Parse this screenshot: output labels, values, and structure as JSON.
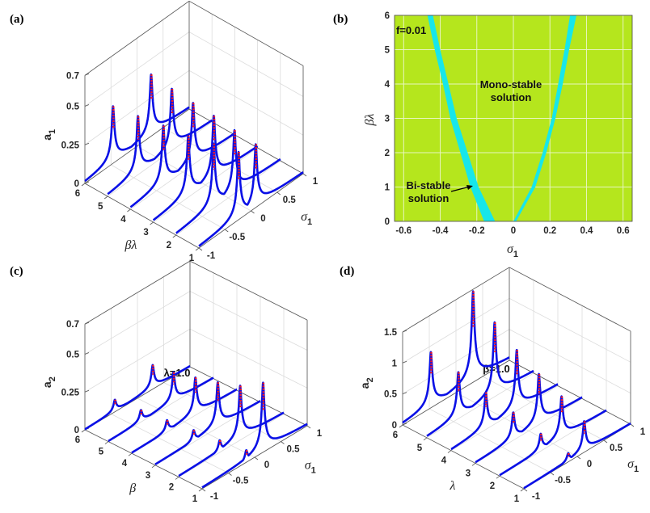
{
  "colors": {
    "curve_stable": "#0a10e6",
    "curve_unstable": "#ff1a1a",
    "map_bg": "#b5e61d",
    "map_band": "#17e6ea",
    "grid": "#dcdcdc",
    "axis": "#555555"
  },
  "chart_data": [
    {
      "type": "line3d",
      "panel_label": "(a)",
      "zlabel": {
        "main": "a",
        "sub": "1"
      },
      "ylabel": "βλ",
      "xlabel": {
        "main": "σ",
        "sub": "1"
      },
      "annotation": "",
      "zlim": [
        0,
        0.7
      ],
      "zticks": [
        0,
        0.25,
        0.5,
        0.7
      ],
      "zticklabels": [
        "0",
        "0.25",
        "0.5",
        "0.7"
      ],
      "yticks": [
        1,
        2,
        3,
        4,
        5,
        6
      ],
      "yticklabels": [
        "1",
        "2",
        "3",
        "4",
        "5",
        "6"
      ],
      "xticks": [
        -1,
        -0.5,
        0,
        0.5,
        1
      ],
      "xticklabels": [
        "-1",
        "-0.5",
        "0",
        "0.5",
        "1"
      ],
      "series": [
        {
          "param": 6,
          "peaks": [
            {
              "sigma": -0.46,
              "height": 0.37
            },
            {
              "sigma": 0.27,
              "height": 0.4
            }
          ]
        },
        {
          "param": 5,
          "peaks": [
            {
              "sigma": -0.42,
              "height": 0.38
            },
            {
              "sigma": 0.23,
              "height": 0.4
            }
          ]
        },
        {
          "param": 4,
          "peaks": [
            {
              "sigma": -0.37,
              "height": 0.39
            },
            {
              "sigma": 0.2,
              "height": 0.4
            }
          ]
        },
        {
          "param": 3,
          "peaks": [
            {
              "sigma": -0.33,
              "height": 0.4
            },
            {
              "sigma": 0.16,
              "height": 0.41
            }
          ]
        },
        {
          "param": 2,
          "peaks": [
            {
              "sigma": -0.28,
              "height": 0.42
            },
            {
              "sigma": 0.12,
              "height": 0.41
            }
          ]
        },
        {
          "param": 1,
          "peaks": [
            {
              "sigma": -0.24,
              "height": 0.44
            },
            {
              "sigma": 0.09,
              "height": 0.41
            }
          ]
        }
      ]
    },
    {
      "type": "area",
      "panel_label": "(b)",
      "xlabel": {
        "main": "σ",
        "sub": "1"
      },
      "ylabel": "βλ",
      "xlim": [
        -0.65,
        0.65
      ],
      "ylim": [
        0,
        6
      ],
      "xticks": [
        -0.6,
        -0.4,
        -0.2,
        0,
        0.2,
        0.4,
        0.6
      ],
      "xticklabels": [
        "-0.6",
        "-0.4",
        "-0.2",
        "0",
        "0.2",
        "0.4",
        "0.6"
      ],
      "yticks": [
        0,
        1,
        2,
        3,
        4,
        5,
        6
      ],
      "yticklabels": [
        "0",
        "1",
        "2",
        "3",
        "4",
        "5",
        "6"
      ],
      "grid": true,
      "annotations": {
        "param": "f=0.01",
        "mono_line1": "Mono-stable",
        "mono_line2": "solution",
        "bi_line1": "Bi-stable",
        "bi_line2": "solution"
      },
      "regions": [
        {
          "name": "bistable-left",
          "outer": [
            [
              -0.16,
              0
            ],
            [
              -0.235,
              1
            ],
            [
              -0.29,
              2
            ],
            [
              -0.345,
              3
            ],
            [
              -0.385,
              4
            ],
            [
              -0.43,
              5
            ],
            [
              -0.47,
              6
            ]
          ],
          "inner": [
            [
              -0.1,
              0
            ],
            [
              -0.19,
              1
            ],
            [
              -0.25,
              2
            ],
            [
              -0.31,
              3
            ],
            [
              -0.355,
              4
            ],
            [
              -0.4,
              5
            ],
            [
              -0.44,
              6
            ]
          ]
        },
        {
          "name": "bistable-right",
          "outer": [
            [
              0.015,
              0
            ],
            [
              0.12,
              1
            ],
            [
              0.18,
              2
            ],
            [
              0.23,
              3
            ],
            [
              0.27,
              4
            ],
            [
              0.305,
              5
            ],
            [
              0.345,
              6
            ]
          ],
          "inner": [
            [
              0.0,
              0
            ],
            [
              0.1,
              1
            ],
            [
              0.16,
              2
            ],
            [
              0.21,
              3
            ],
            [
              0.245,
              4
            ],
            [
              0.28,
              5
            ],
            [
              0.31,
              6
            ]
          ]
        }
      ]
    },
    {
      "type": "line3d",
      "panel_label": "(c)",
      "zlabel": {
        "main": "a",
        "sub": "2"
      },
      "ylabel": "β",
      "xlabel": {
        "main": "σ",
        "sub": "1"
      },
      "annotation": "λ=1.0",
      "zlim": [
        0,
        0.7
      ],
      "zticks": [
        0,
        0.25,
        0.5,
        0.7
      ],
      "zticklabels": [
        "0",
        "0.25",
        "0.5",
        "0.7"
      ],
      "yticks": [
        1,
        2,
        3,
        4,
        5,
        6
      ],
      "yticklabels": [
        "1",
        "2",
        "3",
        "4",
        "5",
        "6"
      ],
      "xticks": [
        -1,
        -0.5,
        0,
        0.5,
        1
      ],
      "xticklabels": [
        "-1",
        "-0.5",
        "0",
        "0.5",
        "1"
      ],
      "series": [
        {
          "param": 6,
          "peaks": [
            {
              "sigma": -0.43,
              "height": 0.08
            },
            {
              "sigma": 0.29,
              "height": 0.16
            }
          ]
        },
        {
          "param": 5,
          "peaks": [
            {
              "sigma": -0.38,
              "height": 0.08
            },
            {
              "sigma": 0.24,
              "height": 0.2
            }
          ]
        },
        {
          "param": 4,
          "peaks": [
            {
              "sigma": -0.33,
              "height": 0.08
            },
            {
              "sigma": 0.21,
              "height": 0.25
            }
          ]
        },
        {
          "param": 3,
          "peaks": [
            {
              "sigma": -0.27,
              "height": 0.08
            },
            {
              "sigma": 0.19,
              "height": 0.3
            }
          ]
        },
        {
          "param": 2,
          "peaks": [
            {
              "sigma": -0.22,
              "height": 0.08
            },
            {
              "sigma": 0.17,
              "height": 0.36
            }
          ]
        },
        {
          "param": 1,
          "peaks": [
            {
              "sigma": -0.16,
              "height": 0.08
            },
            {
              "sigma": 0.16,
              "height": 0.46
            }
          ]
        }
      ]
    },
    {
      "type": "line3d",
      "panel_label": "(d)",
      "zlabel": {
        "main": "a",
        "sub": "2"
      },
      "ylabel": "λ",
      "xlabel": {
        "main": "σ",
        "sub": "1"
      },
      "annotation": "β=1.0",
      "zlim": [
        0,
        1.5
      ],
      "zticks": [
        0,
        0.5,
        1,
        1.5
      ],
      "zticklabels": [
        "0",
        "0.5",
        "1",
        "1.5"
      ],
      "yticks": [
        1,
        2,
        3,
        4,
        5,
        6
      ],
      "yticklabels": [
        "1",
        "2",
        "3",
        "4",
        "5",
        "6"
      ],
      "xticks": [
        -1,
        -0.5,
        0,
        0.5,
        1
      ],
      "xticklabels": [
        "-1",
        "-0.5",
        "0",
        "0.5",
        "1"
      ],
      "series": [
        {
          "param": 6,
          "peaks": [
            {
              "sigma": -0.47,
              "height": 0.9
            },
            {
              "sigma": 0.32,
              "height": 1.47
            }
          ]
        },
        {
          "param": 5,
          "peaks": [
            {
              "sigma": -0.41,
              "height": 0.75
            },
            {
              "sigma": 0.27,
              "height": 1.2
            }
          ]
        },
        {
          "param": 4,
          "peaks": [
            {
              "sigma": -0.35,
              "height": 0.6
            },
            {
              "sigma": 0.23,
              "height": 0.98
            }
          ]
        },
        {
          "param": 3,
          "peaks": [
            {
              "sigma": -0.29,
              "height": 0.45
            },
            {
              "sigma": 0.19,
              "height": 0.82
            }
          ]
        },
        {
          "param": 2,
          "peaks": [
            {
              "sigma": -0.23,
              "height": 0.28
            },
            {
              "sigma": 0.16,
              "height": 0.68
            }
          ]
        },
        {
          "param": 1,
          "peaks": [
            {
              "sigma": -0.17,
              "height": 0.14
            },
            {
              "sigma": 0.13,
              "height": 0.5
            }
          ]
        }
      ]
    }
  ]
}
